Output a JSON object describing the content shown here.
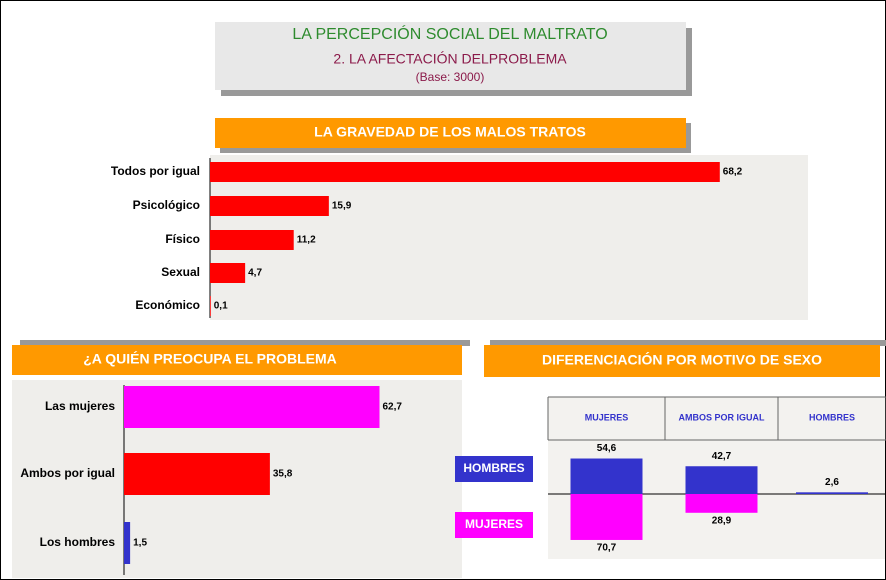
{
  "header": {
    "title": "LA PERCEPCIÓN SOCIAL DEL MALTRATO",
    "subtitle": "2. LA AFECTACIÓN DELPROBLEMA",
    "base": "(Base: 3000)"
  },
  "chart_data": [
    {
      "type": "hbar",
      "title": "LA GRAVEDAD DE LOS MALOS TRATOS",
      "categories": [
        "Todos por igual",
        "Psicológico",
        "Físico",
        "Sexual",
        "Económico"
      ],
      "values": [
        68.2,
        15.9,
        11.2,
        4.7,
        0.1
      ],
      "value_labels": [
        "68,2",
        "15,9",
        "11,2",
        "4,7",
        "0,1"
      ],
      "color": "#ff0000",
      "xlim": [
        0,
        80
      ]
    },
    {
      "type": "hbar",
      "title": "¿A QUIÉN PREOCUPA EL PROBLEMA",
      "categories": [
        "Las mujeres",
        "Ambos por igual",
        "Los hombres"
      ],
      "values": [
        62.7,
        35.8,
        1.5
      ],
      "value_labels": [
        "62,7",
        "35,8",
        "1,5"
      ],
      "colors": [
        "#ff00ff",
        "#ff0000",
        "#3333cc"
      ],
      "xlim": [
        0,
        80
      ]
    },
    {
      "type": "diverging",
      "title": "DIFERENCIACIÓN POR MOTIVO DE SEXO",
      "categories": [
        "MUJERES",
        "AMBOS POR IGUAL",
        "HOMBRES"
      ],
      "series": [
        {
          "name": "HOMBRES",
          "color": "#3333cc",
          "values": [
            54.6,
            42.7,
            2.6
          ],
          "value_labels": [
            "54,6",
            "42,7",
            "2,6"
          ]
        },
        {
          "name": "MUJERES",
          "color": "#ff00ff",
          "values": [
            70.7,
            28.9,
            null
          ],
          "value_labels": [
            "70,7",
            "28,9",
            null
          ]
        }
      ],
      "ylim": [
        0,
        80
      ]
    }
  ]
}
